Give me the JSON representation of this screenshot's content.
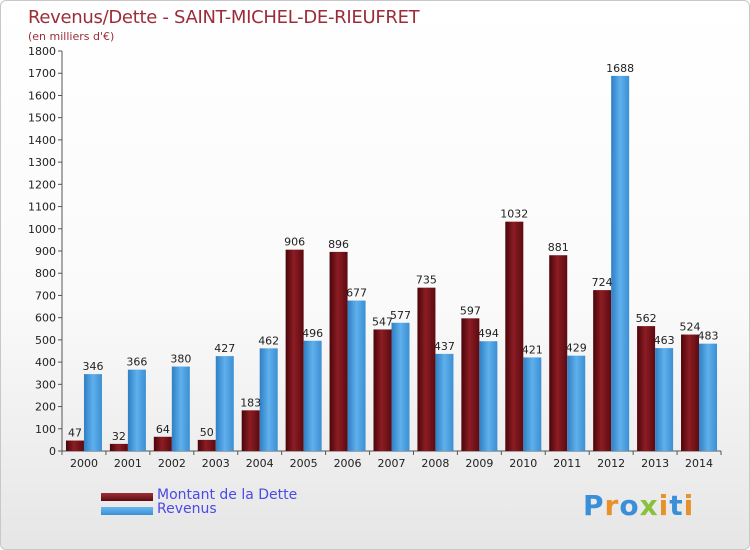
{
  "title": "Revenus/Dette - SAINT-MICHEL-DE-RIEUFRET",
  "subtitle": "(en milliers d'€)",
  "colors": {
    "dette": "#7a0e15",
    "revenus": "#4ea2e0",
    "axis_text": "#222222",
    "title": "#9b2c38",
    "legend_text": "#4a4ae6"
  },
  "legend": [
    {
      "label": "Montant de la Dette",
      "color": "#7a0e15"
    },
    {
      "label": "Revenus",
      "color": "#4ea2e0"
    }
  ],
  "logo": {
    "text": "Proxiti",
    "letters": [
      {
        "ch": "P",
        "color": "#3a8fd8"
      },
      {
        "ch": "r",
        "color": "#e8902a"
      },
      {
        "ch": "o",
        "color": "#3a8fd8"
      },
      {
        "ch": "x",
        "color": "#8ac13c"
      },
      {
        "ch": "i",
        "color": "#e8902a"
      },
      {
        "ch": "t",
        "color": "#3a8fd8"
      },
      {
        "ch": "i",
        "color": "#e8902a"
      }
    ]
  },
  "chart_data": {
    "type": "bar",
    "title": "Revenus/Dette - SAINT-MICHEL-DE-RIEUFRET",
    "subtitle": "(en milliers d'€)",
    "xlabel": "",
    "ylabel": "",
    "ylim": [
      0,
      1800
    ],
    "yticks": [
      0,
      100,
      200,
      300,
      400,
      500,
      600,
      700,
      800,
      900,
      1000,
      1100,
      1200,
      1300,
      1400,
      1500,
      1600,
      1700,
      1800
    ],
    "grid": false,
    "legend_position": "bottom-left",
    "categories": [
      "2000",
      "2001",
      "2002",
      "2003",
      "2004",
      "2005",
      "2006",
      "2007",
      "2008",
      "2009",
      "2010",
      "2011",
      "2012",
      "2013",
      "2014"
    ],
    "series": [
      {
        "name": "Montant de la Dette",
        "color": "#7a0e15",
        "values": [
          47,
          32,
          64,
          50,
          183,
          906,
          896,
          547,
          735,
          597,
          1032,
          881,
          724,
          562,
          524
        ]
      },
      {
        "name": "Revenus",
        "color": "#4ea2e0",
        "values": [
          346,
          366,
          380,
          427,
          462,
          496,
          677,
          577,
          437,
          494,
          421,
          429,
          1688,
          463,
          483
        ]
      }
    ]
  }
}
